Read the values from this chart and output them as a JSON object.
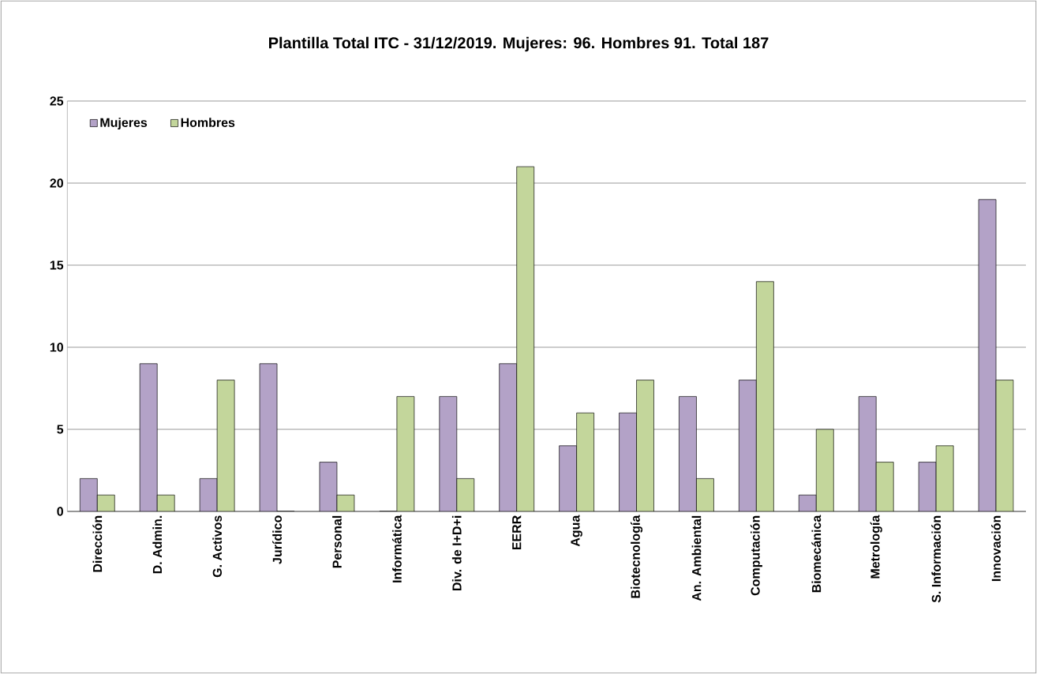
{
  "chart_data": {
    "type": "bar",
    "title": "Plantilla Total ITC - 31/12/2019. Mujeres: 96. Hombres 91. Total 187",
    "categories": [
      "Dirección",
      "D. Admin.",
      "G. Activos",
      "Jurídico",
      "Personal",
      "Informática",
      "Div. de I+D+i",
      "EERR",
      "Agua",
      "Biotecnología",
      "An. Ambiental",
      "Computación",
      "Biomecánica",
      "Metrología",
      "S. Información",
      "Innovación"
    ],
    "series": [
      {
        "name": "Mujeres",
        "color": "#b3a2c7",
        "values": [
          2,
          9,
          2,
          9,
          3,
          0,
          7,
          9,
          4,
          6,
          7,
          8,
          1,
          7,
          3,
          19
        ]
      },
      {
        "name": "Hombres",
        "color": "#c3d69b",
        "values": [
          1,
          1,
          8,
          0,
          1,
          7,
          2,
          21,
          6,
          8,
          2,
          14,
          5,
          3,
          4,
          8
        ]
      }
    ],
    "ylim": [
      0,
      25
    ],
    "yticks": [
      0,
      5,
      10,
      15,
      20,
      25
    ],
    "grid": "y",
    "legend": "top left"
  }
}
